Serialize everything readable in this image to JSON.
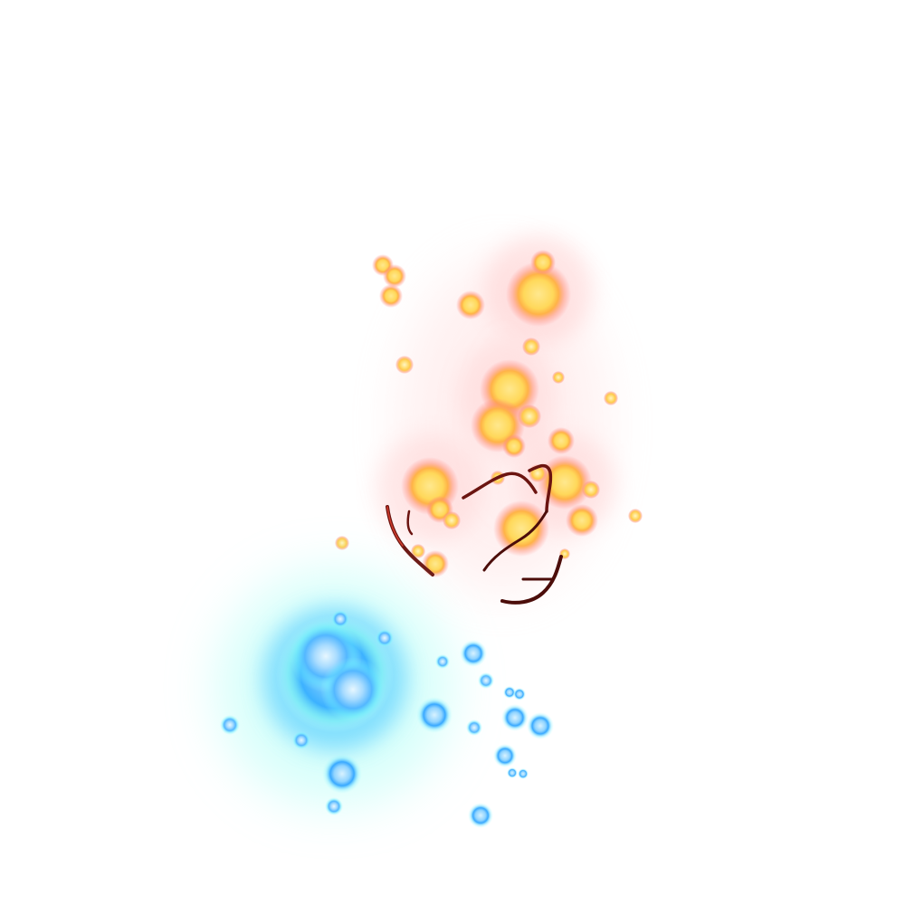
{
  "scene": {
    "name": "particle-effect-sprite",
    "background": "#ffffff"
  },
  "palette": {
    "fire_core": "#fff7b8",
    "fire_mid": "#ffcf4d",
    "fire_outer": "#ff9a4d",
    "fire_halo": "#ff6a6a",
    "ember_dark": "#5a0e0a",
    "ember_red": "#b3261e",
    "ice_core": "#dff4ff",
    "ice_mid": "#55b8ff",
    "ice_outer": "#2aa7ff",
    "ice_halo": "#7ff2f0"
  },
  "effects": [
    {
      "name": "fire-burst",
      "icon": "fire-particles-icon"
    },
    {
      "name": "ice-burst",
      "icon": "frost-particles-icon"
    }
  ]
}
